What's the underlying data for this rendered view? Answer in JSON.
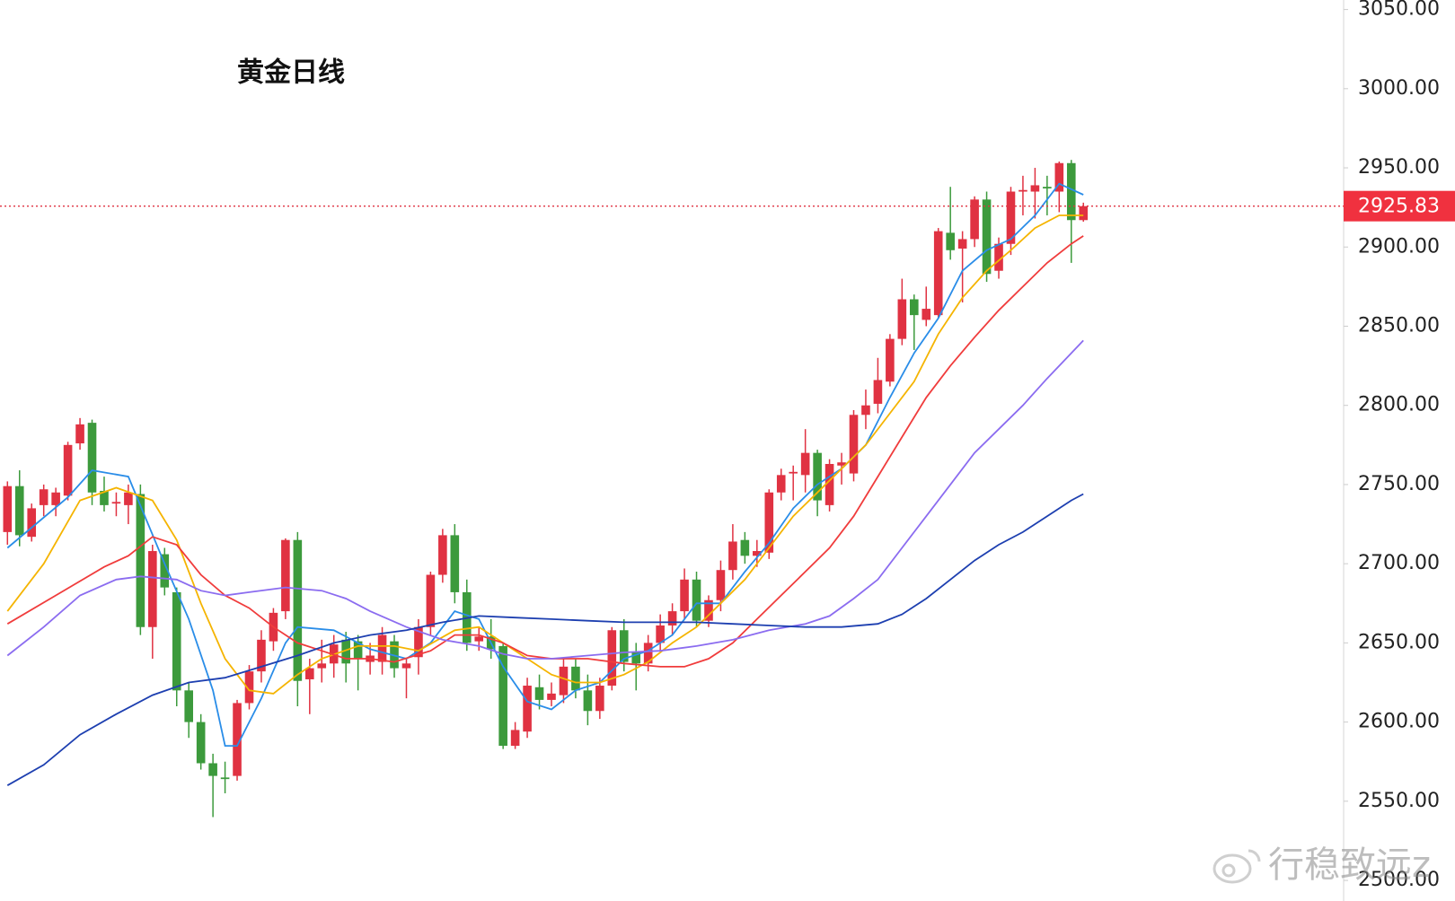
{
  "chart_data": {
    "type": "candlestick",
    "title": "黄金日线",
    "watermark": "行稳致远z",
    "up_color": "#e03242",
    "down_color": "#3c9a3c",
    "open": [
      2720,
      2749,
      2717,
      2737,
      2737,
      2743,
      2776,
      2789,
      2746,
      2738,
      2737,
      2744,
      2660,
      2706,
      2682,
      2620,
      2600,
      2574,
      2565,
      2566,
      2612,
      2632,
      2651,
      2670,
      2715,
      2627,
      2634,
      2637,
      2652,
      2651,
      2638,
      2638,
      2651,
      2634,
      2641,
      2660,
      2693,
      2718,
      2682,
      2651,
      2654,
      2648,
      2585,
      2594,
      2622,
      2614,
      2617,
      2635,
      2620,
      2607,
      2623,
      2658,
      2644,
      2637,
      2650,
      2661,
      2670,
      2690,
      2664,
      2677,
      2696,
      2715,
      2705,
      2707,
      2745,
      2757,
      2756,
      2770,
      2737,
      2762,
      2757,
      2794,
      2801,
      2815,
      2842,
      2867,
      2854,
      2857,
      2909,
      2899,
      2905,
      2930,
      2885,
      2902,
      2935,
      2935,
      2938,
      2935,
      2953,
      2917
    ],
    "high": [
      2752,
      2759,
      2738,
      2750,
      2748,
      2777,
      2792,
      2791,
      2755,
      2745,
      2750,
      2750,
      2712,
      2710,
      2685,
      2625,
      2605,
      2580,
      2575,
      2614,
      2636,
      2658,
      2672,
      2716,
      2720,
      2640,
      2652,
      2655,
      2657,
      2655,
      2650,
      2660,
      2655,
      2640,
      2665,
      2695,
      2722,
      2725,
      2690,
      2660,
      2665,
      2650,
      2600,
      2628,
      2630,
      2625,
      2640,
      2640,
      2630,
      2628,
      2660,
      2665,
      2650,
      2655,
      2668,
      2675,
      2697,
      2695,
      2680,
      2702,
      2725,
      2720,
      2715,
      2747,
      2760,
      2762,
      2785,
      2772,
      2766,
      2770,
      2797,
      2810,
      2830,
      2845,
      2880,
      2870,
      2875,
      2912,
      2938,
      2910,
      2932,
      2935,
      2906,
      2938,
      2945,
      2950,
      2945,
      2954,
      2955,
      2928
    ],
    "low": [
      2712,
      2711,
      2714,
      2730,
      2730,
      2740,
      2772,
      2737,
      2733,
      2730,
      2725,
      2655,
      2640,
      2680,
      2610,
      2590,
      2570,
      2540,
      2555,
      2563,
      2608,
      2625,
      2645,
      2665,
      2610,
      2605,
      2625,
      2628,
      2625,
      2620,
      2630,
      2630,
      2628,
      2615,
      2630,
      2655,
      2688,
      2675,
      2645,
      2645,
      2640,
      2583,
      2583,
      2590,
      2608,
      2610,
      2612,
      2615,
      2598,
      2602,
      2620,
      2632,
      2620,
      2632,
      2645,
      2655,
      2665,
      2660,
      2660,
      2670,
      2690,
      2700,
      2698,
      2703,
      2740,
      2740,
      2745,
      2730,
      2733,
      2750,
      2752,
      2785,
      2795,
      2812,
      2838,
      2835,
      2850,
      2855,
      2892,
      2865,
      2900,
      2878,
      2880,
      2895,
      2920,
      2918,
      2920,
      2922,
      2890,
      2916
    ],
    "close": [
      2749,
      2718,
      2735,
      2747,
      2745,
      2775,
      2788,
      2745,
      2737,
      2739,
      2745,
      2660,
      2708,
      2685,
      2620,
      2600,
      2574,
      2566,
      2564,
      2612,
      2632,
      2652,
      2669,
      2715,
      2626,
      2634,
      2637,
      2649,
      2637,
      2640,
      2642,
      2655,
      2634,
      2637,
      2660,
      2693,
      2718,
      2682,
      2650,
      2654,
      2646,
      2585,
      2595,
      2623,
      2614,
      2618,
      2635,
      2620,
      2607,
      2623,
      2658,
      2638,
      2637,
      2650,
      2661,
      2670,
      2690,
      2664,
      2677,
      2696,
      2714,
      2705,
      2708,
      2745,
      2756,
      2758,
      2770,
      2740,
      2763,
      2764,
      2794,
      2800,
      2816,
      2842,
      2867,
      2857,
      2861,
      2910,
      2898,
      2905,
      2930,
      2883,
      2902,
      2935,
      2936,
      2939,
      2937,
      2953,
      2917,
      2925.83
    ],
    "moving_averages": [
      {
        "color": "#2a8de8",
        "x": [
          0,
          5,
          7,
          10,
          13,
          15,
          17,
          18,
          19,
          21,
          23,
          24,
          27,
          30,
          33,
          35,
          37,
          39,
          41,
          43,
          45,
          47,
          49,
          51,
          53,
          55,
          57,
          59,
          61,
          63,
          65,
          67,
          69,
          71,
          73,
          75,
          77,
          79,
          81,
          83,
          85,
          87,
          89
        ],
        "values": [
          2710,
          2742,
          2759,
          2755,
          2700,
          2665,
          2620,
          2585,
          2585,
          2615,
          2650,
          2660,
          2658,
          2646,
          2640,
          2650,
          2670,
          2665,
          2635,
          2613,
          2608,
          2620,
          2625,
          2640,
          2645,
          2655,
          2675,
          2675,
          2695,
          2713,
          2735,
          2750,
          2760,
          2775,
          2805,
          2833,
          2855,
          2885,
          2898,
          2905,
          2920,
          2940,
          2933
        ]
      },
      {
        "color": "#f5b400",
        "x": [
          0,
          3,
          6,
          9,
          12,
          14,
          16,
          18,
          20,
          22,
          24,
          26,
          29,
          32,
          34,
          37,
          39,
          41,
          43,
          45,
          47,
          49,
          51,
          53,
          55,
          57,
          59,
          61,
          63,
          65,
          67,
          69,
          71,
          73,
          75,
          77,
          79,
          81,
          83,
          85,
          87,
          89
        ],
        "values": [
          2670,
          2700,
          2740,
          2748,
          2740,
          2715,
          2675,
          2640,
          2620,
          2618,
          2630,
          2640,
          2648,
          2648,
          2645,
          2658,
          2660,
          2650,
          2640,
          2630,
          2625,
          2625,
          2630,
          2638,
          2650,
          2660,
          2675,
          2690,
          2710,
          2730,
          2745,
          2760,
          2775,
          2795,
          2815,
          2845,
          2868,
          2885,
          2898,
          2912,
          2920,
          2920
        ]
      },
      {
        "color": "#f03c3c",
        "x": [
          0,
          4,
          8,
          10,
          12,
          14,
          16,
          18,
          20,
          22,
          24,
          26,
          28,
          30,
          32,
          35,
          37,
          39,
          41,
          43,
          45,
          48,
          51,
          54,
          56,
          58,
          60,
          62,
          64,
          66,
          68,
          70,
          72,
          74,
          76,
          78,
          80,
          82,
          84,
          86,
          88,
          89
        ],
        "values": [
          2662,
          2680,
          2698,
          2705,
          2717,
          2712,
          2693,
          2680,
          2672,
          2660,
          2650,
          2645,
          2640,
          2640,
          2638,
          2645,
          2655,
          2655,
          2650,
          2642,
          2640,
          2640,
          2637,
          2635,
          2635,
          2640,
          2650,
          2665,
          2680,
          2695,
          2710,
          2730,
          2755,
          2780,
          2805,
          2825,
          2843,
          2860,
          2875,
          2890,
          2902,
          2907
        ]
      },
      {
        "color": "#8b6cf0",
        "x": [
          0,
          3,
          6,
          9,
          11,
          14,
          16,
          18,
          20,
          23,
          26,
          28,
          30,
          33,
          36,
          39,
          41,
          43,
          45,
          48,
          51,
          54,
          57,
          60,
          63,
          66,
          68,
          70,
          72,
          74,
          76,
          78,
          80,
          82,
          84,
          86,
          88,
          89
        ],
        "values": [
          2642,
          2660,
          2680,
          2690,
          2692,
          2690,
          2683,
          2680,
          2682,
          2685,
          2683,
          2678,
          2670,
          2660,
          2652,
          2648,
          2643,
          2640,
          2640,
          2642,
          2644,
          2645,
          2648,
          2652,
          2658,
          2662,
          2667,
          2678,
          2690,
          2710,
          2730,
          2750,
          2770,
          2785,
          2800,
          2817,
          2833,
          2841
        ]
      },
      {
        "color": "#1d3fb0",
        "x": [
          0,
          3,
          6,
          9,
          12,
          15,
          18,
          21,
          24,
          27,
          30,
          33,
          36,
          39,
          42,
          45,
          48,
          51,
          54,
          57,
          60,
          63,
          66,
          69,
          72,
          74,
          76,
          78,
          80,
          82,
          84,
          86,
          88,
          89
        ],
        "values": [
          2560,
          2573,
          2592,
          2605,
          2617,
          2625,
          2628,
          2635,
          2642,
          2650,
          2655,
          2658,
          2663,
          2667,
          2666,
          2665,
          2664,
          2663,
          2663,
          2663,
          2662,
          2661,
          2660,
          2660,
          2662,
          2668,
          2678,
          2690,
          2702,
          2712,
          2720,
          2730,
          2740,
          2744
        ]
      }
    ],
    "last_price": 2925.83,
    "ylim": [
      2487,
      3056
    ],
    "yticks": [
      {
        "value": 2500,
        "label": "2500.00"
      },
      {
        "value": 2550,
        "label": "2550.00"
      },
      {
        "value": 2600,
        "label": "2600.00"
      },
      {
        "value": 2650,
        "label": "2650.00"
      },
      {
        "value": 2700,
        "label": "2700.00"
      },
      {
        "value": 2750,
        "label": "2750.00"
      },
      {
        "value": 2800,
        "label": "2800.00"
      },
      {
        "value": 2850,
        "label": "2850.00"
      },
      {
        "value": 2900,
        "label": "2900.00"
      },
      {
        "value": 2950,
        "label": "2950.00"
      },
      {
        "value": 3000,
        "label": "3000.00"
      },
      {
        "value": 3050,
        "label": "3050.00"
      }
    ]
  }
}
